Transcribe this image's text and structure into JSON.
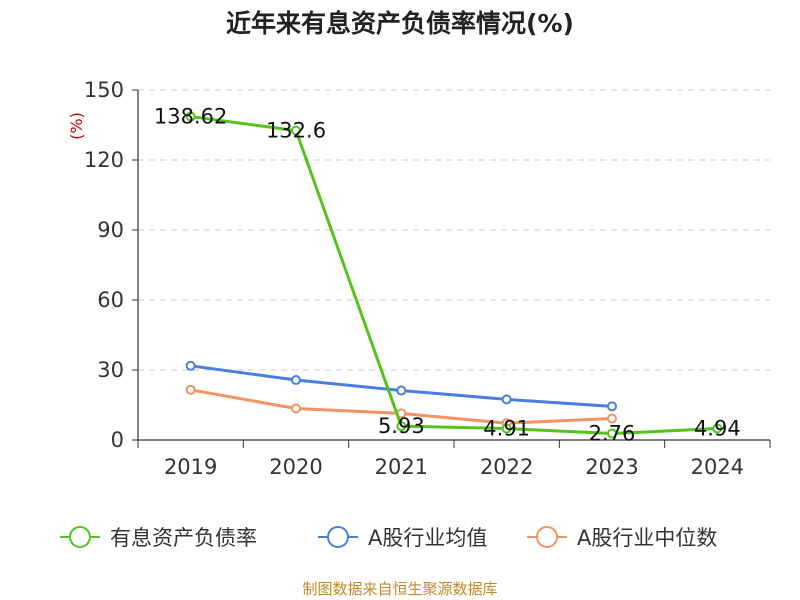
{
  "chart_data": {
    "type": "line",
    "title": "近年来有息资产负债率情况(%)",
    "ylabel": "(%)",
    "xlabel": "",
    "categories": [
      "2019",
      "2020",
      "2021",
      "2022",
      "2023",
      "2024"
    ],
    "ylim": [
      0,
      150
    ],
    "yticks": [
      0,
      30,
      60,
      90,
      120,
      150
    ],
    "grid": true,
    "legend_position": "bottom",
    "series": [
      {
        "name": "有息资产负债率",
        "color": "#52c41a",
        "values": [
          138.62,
          132.6,
          5.93,
          4.91,
          2.76,
          4.94
        ],
        "labels": [
          "138.62",
          "132.6",
          "5.93",
          "4.91",
          "2.76",
          "4.94"
        ]
      },
      {
        "name": "A股行业均值",
        "color": "#4a7ede",
        "values": [
          31.8,
          25.7,
          21.2,
          17.4,
          14.4,
          null
        ],
        "labels": []
      },
      {
        "name": "A股行业中位数",
        "color": "#f59262",
        "values": [
          21.5,
          13.5,
          11.4,
          7.2,
          9.2,
          null
        ],
        "labels": []
      }
    ]
  },
  "source": "制图数据来自恒生聚源数据库"
}
